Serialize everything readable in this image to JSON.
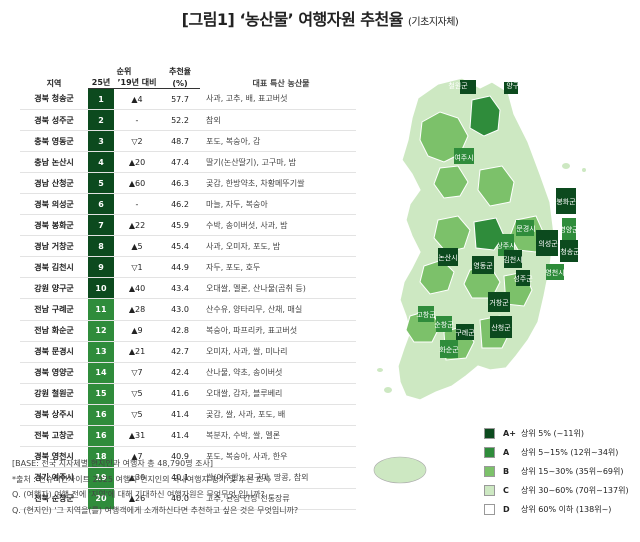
{
  "title": {
    "main": "[그림1] ‘농산물’ 여행자원 추천율",
    "sub": "(기초지자체)"
  },
  "table": {
    "headers": {
      "region": "지역",
      "rank_group": "순위",
      "rank_25": "25년",
      "change": "’19년 대비",
      "rate": "추천율",
      "rate_unit": "(%)",
      "products": "대표 특산 농산물"
    },
    "rows": [
      {
        "region": "경북 청송군",
        "rank": "1",
        "change": "▲4",
        "rate": "57.7",
        "products": "사과, 고추, 배, 표고버섯"
      },
      {
        "region": "경북 성주군",
        "rank": "2",
        "change": "-",
        "rate": "52.2",
        "products": "참외"
      },
      {
        "region": "충북 영동군",
        "rank": "3",
        "change": "▽2",
        "rate": "48.7",
        "products": "포도, 복숭아, 감"
      },
      {
        "region": "충남 논산시",
        "rank": "4",
        "change": "▲20",
        "rate": "47.4",
        "products": "딸기(논산딸기), 고구마, 밤"
      },
      {
        "region": "경남 산청군",
        "rank": "5",
        "change": "▲60",
        "rate": "46.3",
        "products": "곶감, 한방약초, 차황메뚜기쌀"
      },
      {
        "region": "경북 의성군",
        "rank": "6",
        "change": "-",
        "rate": "46.2",
        "products": "마늘, 자두, 복숭아"
      },
      {
        "region": "경북 봉화군",
        "rank": "7",
        "change": "▲22",
        "rate": "45.9",
        "products": "수박, 송이버섯, 사과, 밤"
      },
      {
        "region": "경남 거창군",
        "rank": "8",
        "change": "▲5",
        "rate": "45.4",
        "products": "사과, 오미자, 포도, 밤"
      },
      {
        "region": "경북 김천시",
        "rank": "9",
        "change": "▽1",
        "rate": "44.9",
        "products": "자두, 포도, 호두"
      },
      {
        "region": "강원 양구군",
        "rank": "10",
        "change": "▲40",
        "rate": "43.4",
        "products": "오대쌀, 멜론, 산나물(곰취 등)"
      },
      {
        "region": "전남 구례군",
        "rank": "11",
        "change": "▲28",
        "rate": "43.0",
        "products": "산수유, 양타리무, 산채, 매실"
      },
      {
        "region": "전남 화순군",
        "rank": "12",
        "change": "▲9",
        "rate": "42.8",
        "products": "복숭아, 파프리카, 표고버섯"
      },
      {
        "region": "경북 문경시",
        "rank": "13",
        "change": "▲21",
        "rate": "42.7",
        "products": "오미자, 사과, 쌀, 미나리"
      },
      {
        "region": "경북 영양군",
        "rank": "14",
        "change": "▽7",
        "rate": "42.4",
        "products": "산나물, 약초, 송이버섯"
      },
      {
        "region": "강원 철원군",
        "rank": "15",
        "change": "▽5",
        "rate": "41.6",
        "products": "오대쌀, 감자, 블루베리"
      },
      {
        "region": "경북 상주시",
        "rank": "16",
        "change": "▽5",
        "rate": "41.4",
        "products": "곶감, 쌀, 사과, 포도, 배"
      },
      {
        "region": "전북 고창군",
        "rank": "16",
        "change": "▲31",
        "rate": "41.4",
        "products": "복분자, 수박, 쌀, 멜론"
      },
      {
        "region": "경북 영천시",
        "rank": "18",
        "change": "▲7",
        "rate": "40.9",
        "products": "포도, 복숭아, 사과, 한우"
      },
      {
        "region": "경기 여주시",
        "rank": "19",
        "change": "▲30",
        "rate": "40.1",
        "products": "쌀(여주쌀), 고구마, 땅콩, 참외"
      },
      {
        "region": "전북 순창군",
        "rank": "20",
        "change": "▲26",
        "rate": "40.0",
        "products": "고추, 된장·간장·전통장류"
      }
    ]
  },
  "map_labels": [
    "철원군",
    "양구군",
    "여주시",
    "봉화군",
    "영양군",
    "문경시",
    "의성군",
    "청송군",
    "상주시",
    "논산시",
    "영동군",
    "김천시",
    "성주군",
    "영천시",
    "거창군",
    "산청군",
    "고창군",
    "순창군",
    "구례군",
    "화순군"
  ],
  "legend": [
    {
      "grade": "A+",
      "label": "상위 5% (~11위)",
      "color": "#0c4a1e"
    },
    {
      "grade": "A",
      "label": "상위 5~15% (12위~34위)",
      "color": "#2f8c3b"
    },
    {
      "grade": "B",
      "label": "상위 15~30% (35위~69위)",
      "color": "#7cc16a"
    },
    {
      "grade": "C",
      "label": "상위 30~60% (70위~137위)",
      "color": "#cde8c2"
    },
    {
      "grade": "D",
      "label": "상위 60% 이하 (138위~)",
      "color": "#ffffff"
    }
  ],
  "notes": [
    "[BASE: 전국 지자체별 현지인과 여행자 총 48,790명 조사]",
    "*출처 : 컨슈머인사이트 2025 여행자·현지인의 국내여행지 평가 및 추천 조사",
    "Q. (여행자) 여행 전에 '지역'에 대해 기대하신 여행자원은 무엇무엇 입니까?",
    "Q. (현지인) '그 지역을(를) 여행객에게 소개하신다면 추천하고 싶은 것은 무엇입니까?"
  ],
  "chart_data": {
    "type": "table",
    "title": "[그림1] ‘농산물’ 여행자원 추천율 (기초지자체)",
    "columns": [
      "지역",
      "25년",
      "’19년 대비",
      "추천율 (%)",
      "대표 특산 농산물"
    ],
    "rows": [
      [
        "경북 청송군",
        1,
        "▲4",
        57.7
      ],
      [
        "경북 성주군",
        2,
        "-",
        52.2
      ],
      [
        "충북 영동군",
        3,
        "▽2",
        48.7
      ],
      [
        "충남 논산시",
        4,
        "▲20",
        47.4
      ],
      [
        "경남 산청군",
        5,
        "▲60",
        46.3
      ],
      [
        "경북 의성군",
        6,
        "-",
        46.2
      ],
      [
        "경북 봉화군",
        7,
        "▲22",
        45.9
      ],
      [
        "경남 거창군",
        8,
        "▲5",
        45.4
      ],
      [
        "경북 김천시",
        9,
        "▽1",
        44.9
      ],
      [
        "강원 양구군",
        10,
        "▲40",
        43.4
      ],
      [
        "전남 구례군",
        11,
        "▲28",
        43.0
      ],
      [
        "전남 화순군",
        12,
        "▲9",
        42.8
      ],
      [
        "경북 문경시",
        13,
        "▲21",
        42.7
      ],
      [
        "경북 영양군",
        14,
        "▽7",
        42.4
      ],
      [
        "강원 철원군",
        15,
        "▽5",
        41.6
      ],
      [
        "경북 상주시",
        16,
        "▽5",
        41.4
      ],
      [
        "전북 고창군",
        16,
        "▲31",
        41.4
      ],
      [
        "경북 영천시",
        18,
        "▲7",
        40.9
      ],
      [
        "경기 여주시",
        19,
        "▲30",
        40.1
      ],
      [
        "전북 순창군",
        20,
        "▲26",
        40.0
      ]
    ]
  }
}
